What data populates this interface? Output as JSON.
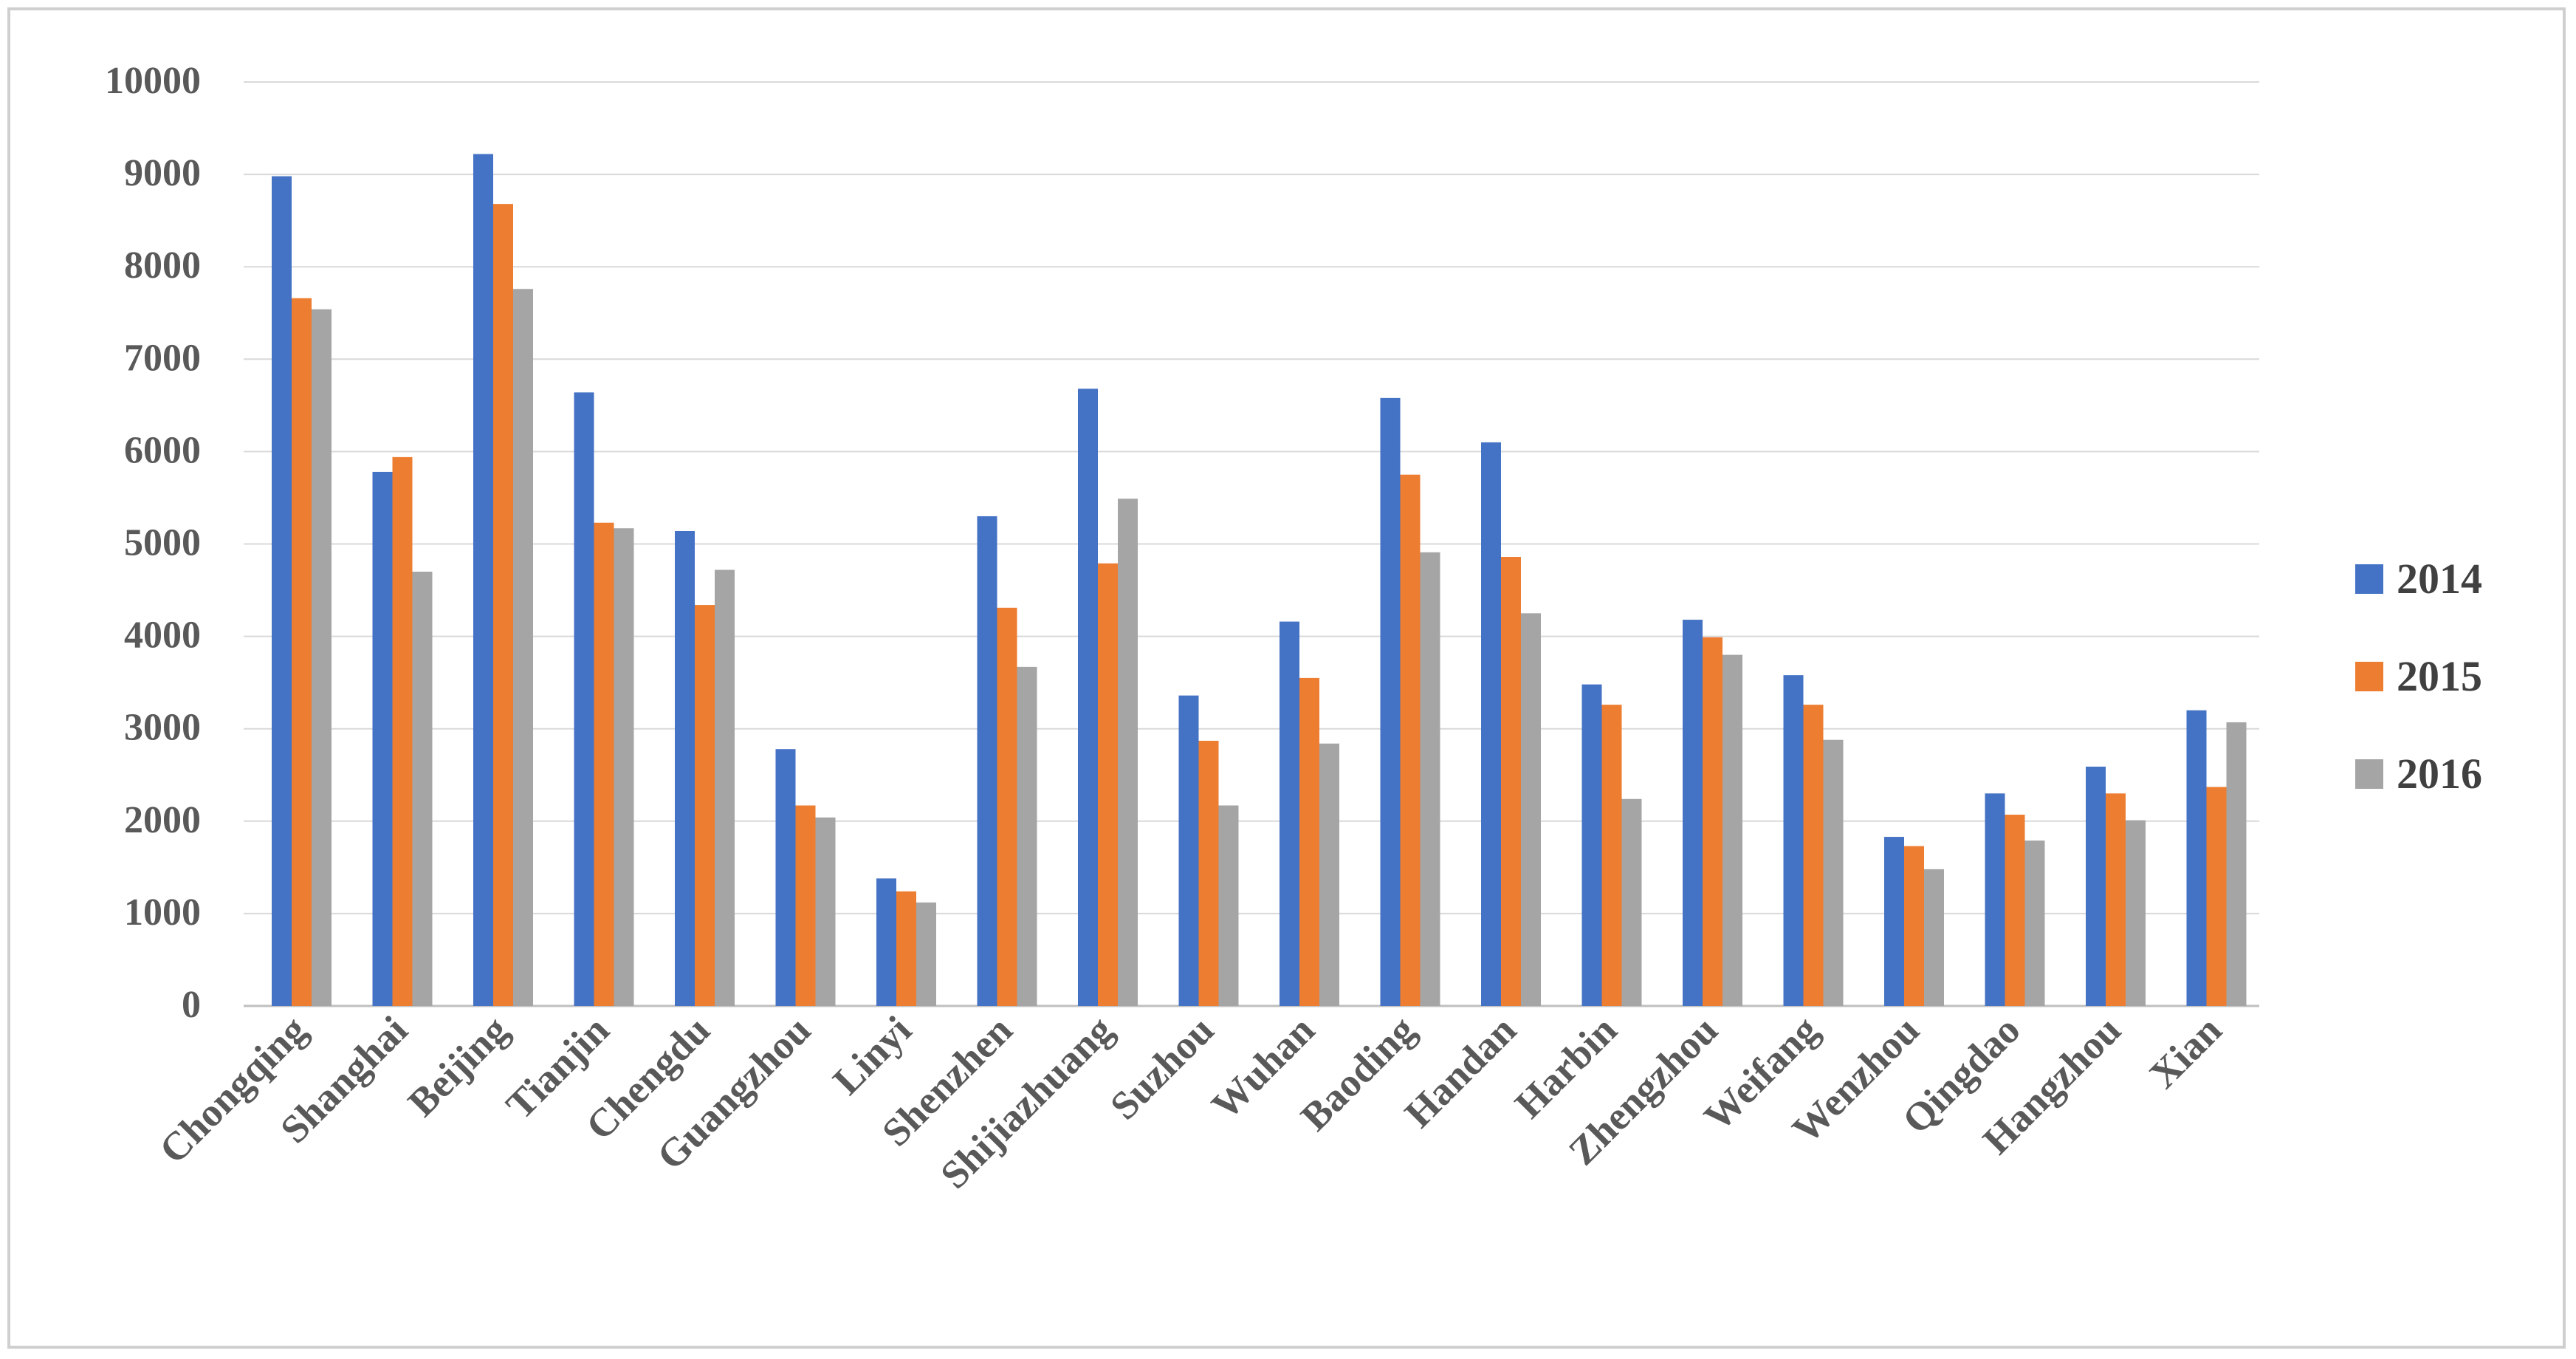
{
  "chart_data": {
    "type": "bar",
    "title": "",
    "xlabel": "",
    "ylabel": "",
    "ylim": [
      0,
      10000
    ],
    "yticks": [
      0,
      1000,
      2000,
      3000,
      4000,
      5000,
      6000,
      7000,
      8000,
      9000,
      10000
    ],
    "grid": true,
    "legend_position": "right",
    "categories": [
      "Chongqing",
      "Shanghai",
      "Beijing",
      "Tianjin",
      "Chengdu",
      "Guangzhou",
      "Linyi",
      "Shenzhen",
      "Shijiazhuang",
      "Suzhou",
      "Wuhan",
      "Baoding",
      "Handan",
      "Harbin",
      "Zhengzhou",
      "Weifang",
      "Wenzhou",
      "Qingdao",
      "Hangzhou",
      "Xian"
    ],
    "series": [
      {
        "name": "2014",
        "color": "#4472c4",
        "values": [
          8980,
          5780,
          9220,
          6640,
          5140,
          2780,
          1380,
          5300,
          6680,
          3360,
          4160,
          6580,
          6100,
          3480,
          4180,
          3580,
          1830,
          2300,
          2590,
          3200
        ]
      },
      {
        "name": "2015",
        "color": "#ed7d31",
        "values": [
          7660,
          5940,
          8680,
          5230,
          4340,
          2170,
          1240,
          4310,
          4790,
          2870,
          3550,
          5750,
          4860,
          3260,
          3990,
          3260,
          1730,
          2070,
          2300,
          2370
        ]
      },
      {
        "name": "2016",
        "color": "#a5a5a5",
        "values": [
          7540,
          4700,
          7760,
          5170,
          4720,
          2040,
          1120,
          3670,
          5490,
          2170,
          2840,
          4910,
          4250,
          2240,
          3800,
          2880,
          1480,
          1790,
          2010,
          3070
        ]
      }
    ]
  }
}
